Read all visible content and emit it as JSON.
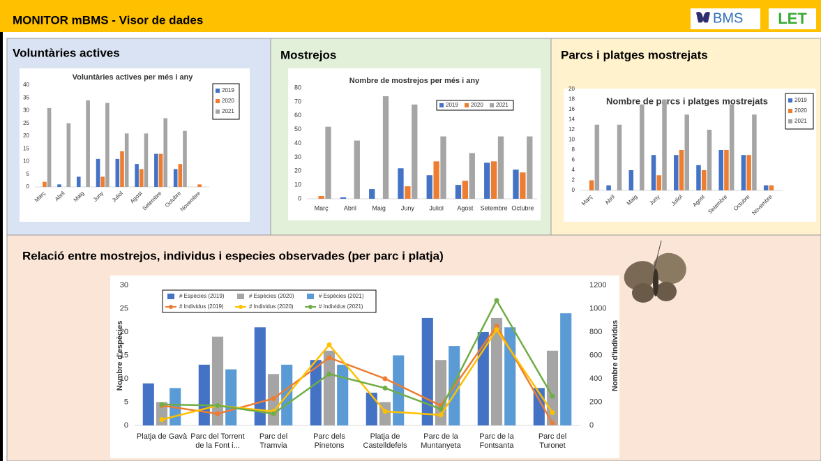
{
  "header": {
    "title": "MONITOR mBMS  -  Visor de dades",
    "logo1": "BMS",
    "logo2": "LET"
  },
  "panels": [
    "Voluntàries actives",
    "Mostrejos",
    "Parcs i platges mostrejats",
    "Relació entre mostrejos, individus i especies observades (per parc i platja)"
  ],
  "chart_data": [
    {
      "type": "bar",
      "title": "Voluntàries actives per més i any",
      "legend": "upper right",
      "categories": [
        "Març",
        "Abril",
        "Maig",
        "Juny",
        "Juliol",
        "Agost",
        "Setembre",
        "Octubre",
        "Novembre"
      ],
      "series": [
        {
          "name": "2019",
          "color": "#4472c4",
          "values": [
            null,
            1,
            4,
            11,
            11,
            9,
            13,
            7,
            null
          ]
        },
        {
          "name": "2020",
          "color": "#ed7d31",
          "values": [
            2,
            null,
            null,
            4,
            14,
            7,
            13,
            9,
            1
          ]
        },
        {
          "name": "2021",
          "color": "#a5a5a5",
          "values": [
            31,
            25,
            34,
            33,
            21,
            21,
            27,
            22,
            null
          ]
        }
      ],
      "ylim": [
        0,
        40
      ],
      "yticks": [
        0,
        5,
        10,
        15,
        20,
        25,
        30,
        35,
        40
      ]
    },
    {
      "type": "bar",
      "title": "Nombre de mostrejos per més i any",
      "legend": "top",
      "categories": [
        "Març",
        "Abril",
        "Maig",
        "Juny",
        "Juliol",
        "Agost",
        "Setembre",
        "Octubre"
      ],
      "series": [
        {
          "name": "2019",
          "color": "#4472c4",
          "values": [
            null,
            1,
            7,
            22,
            17,
            10,
            26,
            21
          ]
        },
        {
          "name": "2020",
          "color": "#ed7d31",
          "values": [
            2,
            null,
            null,
            9,
            27,
            13,
            27,
            19
          ]
        },
        {
          "name": "2021",
          "color": "#a5a5a5",
          "values": [
            52,
            42,
            74,
            68,
            45,
            33,
            45,
            45
          ]
        }
      ],
      "ylim": [
        0,
        80
      ],
      "yticks": [
        0,
        10,
        20,
        30,
        40,
        50,
        60,
        70,
        80
      ]
    },
    {
      "type": "bar",
      "title": "Nombre de parcs i platges mostrejats",
      "legend": "upper right",
      "categories": [
        "Març",
        "Abril",
        "Maig",
        "Juny",
        "Juliol",
        "Agost",
        "Setembre",
        "Octubre",
        "Novembre"
      ],
      "series": [
        {
          "name": "2019",
          "color": "#4472c4",
          "values": [
            null,
            1,
            4,
            7,
            7,
            5,
            8,
            7,
            1
          ]
        },
        {
          "name": "2020",
          "color": "#ed7d31",
          "values": [
            2,
            null,
            null,
            3,
            8,
            4,
            8,
            7,
            1
          ]
        },
        {
          "name": "2021",
          "color": "#a5a5a5",
          "values": [
            13,
            13,
            17,
            18,
            15,
            12,
            17,
            15,
            null
          ]
        }
      ],
      "ylim": [
        0,
        20
      ],
      "yticks": [
        0,
        2,
        4,
        6,
        8,
        10,
        12,
        14,
        16,
        18,
        20
      ]
    },
    {
      "type": "combo",
      "legend": "upper left",
      "y_label": "Nombre d'espècies",
      "y2_label": "Nombre d'individus",
      "categories": [
        "Platja de Gavà",
        "Parc del Torrent de la Font i...",
        "Parc del Tramvia",
        "Parc dels Pinetons",
        "Platja de Castelldefels",
        "Parc de la Muntanyeta",
        "Parc de la Fontsanta",
        "Parc del Turonet"
      ],
      "series": [
        {
          "name": "# Espècies (2019)",
          "kind": "bar",
          "color": "#4472c4",
          "values": [
            9,
            13,
            21,
            14,
            7,
            23,
            20,
            8
          ]
        },
        {
          "name": "# Espècies (2020)",
          "kind": "bar",
          "color": "#a5a5a5",
          "values": [
            5,
            19,
            11,
            16,
            5,
            14,
            23,
            16
          ]
        },
        {
          "name": "# Espècies (2021)",
          "kind": "bar",
          "color": "#5b9bd5",
          "values": [
            8,
            12,
            13,
            13,
            15,
            17,
            21,
            24
          ]
        },
        {
          "name": "# Individus (2019)",
          "kind": "line",
          "axis": "y2",
          "color": "#ed7d31",
          "values": [
            170,
            100,
            230,
            580,
            400,
            170,
            850,
            20
          ]
        },
        {
          "name": "# Individus (2020)",
          "kind": "line",
          "axis": "y2",
          "color": "#ffc000",
          "values": [
            50,
            170,
            120,
            690,
            120,
            90,
            820,
            110
          ]
        },
        {
          "name": "# Individus (2021)",
          "kind": "line",
          "axis": "y2",
          "color": "#70ad47",
          "values": [
            180,
            170,
            100,
            440,
            320,
            140,
            1070,
            250
          ]
        }
      ],
      "ylim": [
        0,
        30
      ],
      "yticks": [
        0,
        5,
        10,
        15,
        20,
        25,
        30
      ],
      "y2lim": [
        0,
        1200
      ],
      "y2ticks": [
        0,
        200,
        400,
        600,
        800,
        1000,
        1200
      ]
    }
  ]
}
